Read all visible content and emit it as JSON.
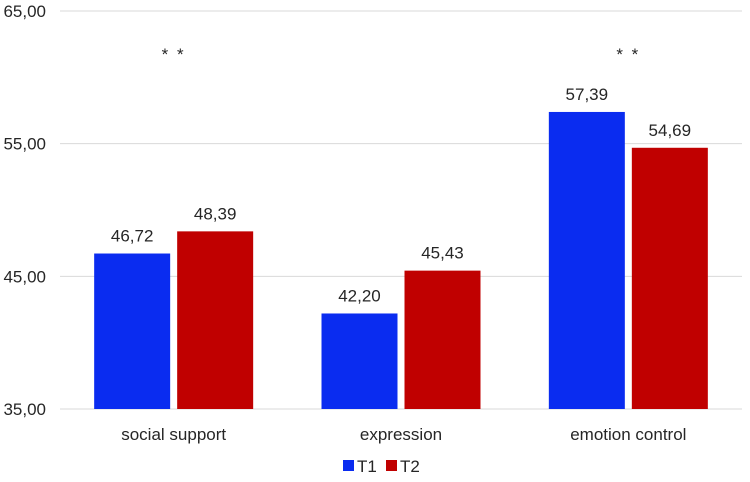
{
  "chart_data": {
    "type": "bar",
    "title": "",
    "xlabel": "",
    "ylabel": "",
    "categories": [
      "social support",
      "expression",
      "emotion control"
    ],
    "series": [
      {
        "name": "T1",
        "color": "#0A2CF0",
        "values": [
          46.72,
          42.2,
          57.39
        ],
        "labels": [
          "46,72",
          "42,20",
          "57,39"
        ]
      },
      {
        "name": "T2",
        "color": "#C00000",
        "values": [
          48.39,
          45.43,
          54.69
        ],
        "labels": [
          "48,39",
          "45,43",
          "54,69"
        ]
      }
    ],
    "ylim": [
      35,
      65
    ],
    "yticks": [
      35,
      45,
      55,
      65
    ],
    "ytick_labels": [
      "35,00",
      "45,00",
      "55,00",
      "65,00"
    ],
    "grid": true,
    "legend_position": "bottom",
    "significance_markers": [
      "* *",
      "",
      "* *"
    ]
  }
}
